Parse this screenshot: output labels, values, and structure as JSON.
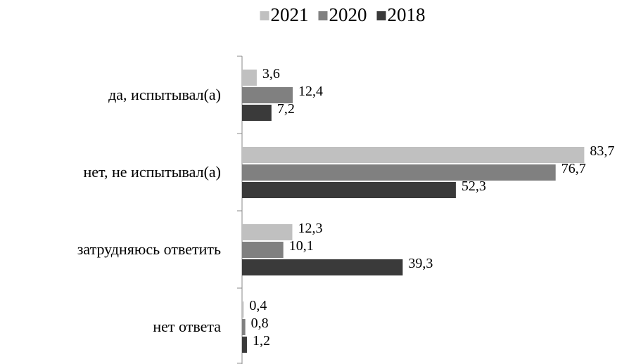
{
  "chart_data": {
    "type": "bar",
    "orientation": "horizontal",
    "categories": [
      "да, испытывал(а)",
      "нет, не испытывал(а)",
      "затрудняюсь ответить",
      "нет ответа"
    ],
    "series": [
      {
        "name": "2021",
        "color": "#c0c0c0",
        "values": [
          3.6,
          83.7,
          12.3,
          0.4
        ],
        "value_labels": [
          "3,6",
          "83,7",
          "12,3",
          "0,4"
        ]
      },
      {
        "name": "2020",
        "color": "#808080",
        "values": [
          12.4,
          76.7,
          10.1,
          0.8
        ],
        "value_labels": [
          "12,4",
          "76,7",
          "10,1",
          "0,8"
        ]
      },
      {
        "name": "2018",
        "color": "#3a3a3a",
        "values": [
          7.2,
          52.3,
          39.3,
          1.2
        ],
        "value_labels": [
          "7,2",
          "52,3",
          "39,3",
          "1,2"
        ]
      }
    ],
    "xlim": [
      0,
      90
    ],
    "legend": "top"
  }
}
